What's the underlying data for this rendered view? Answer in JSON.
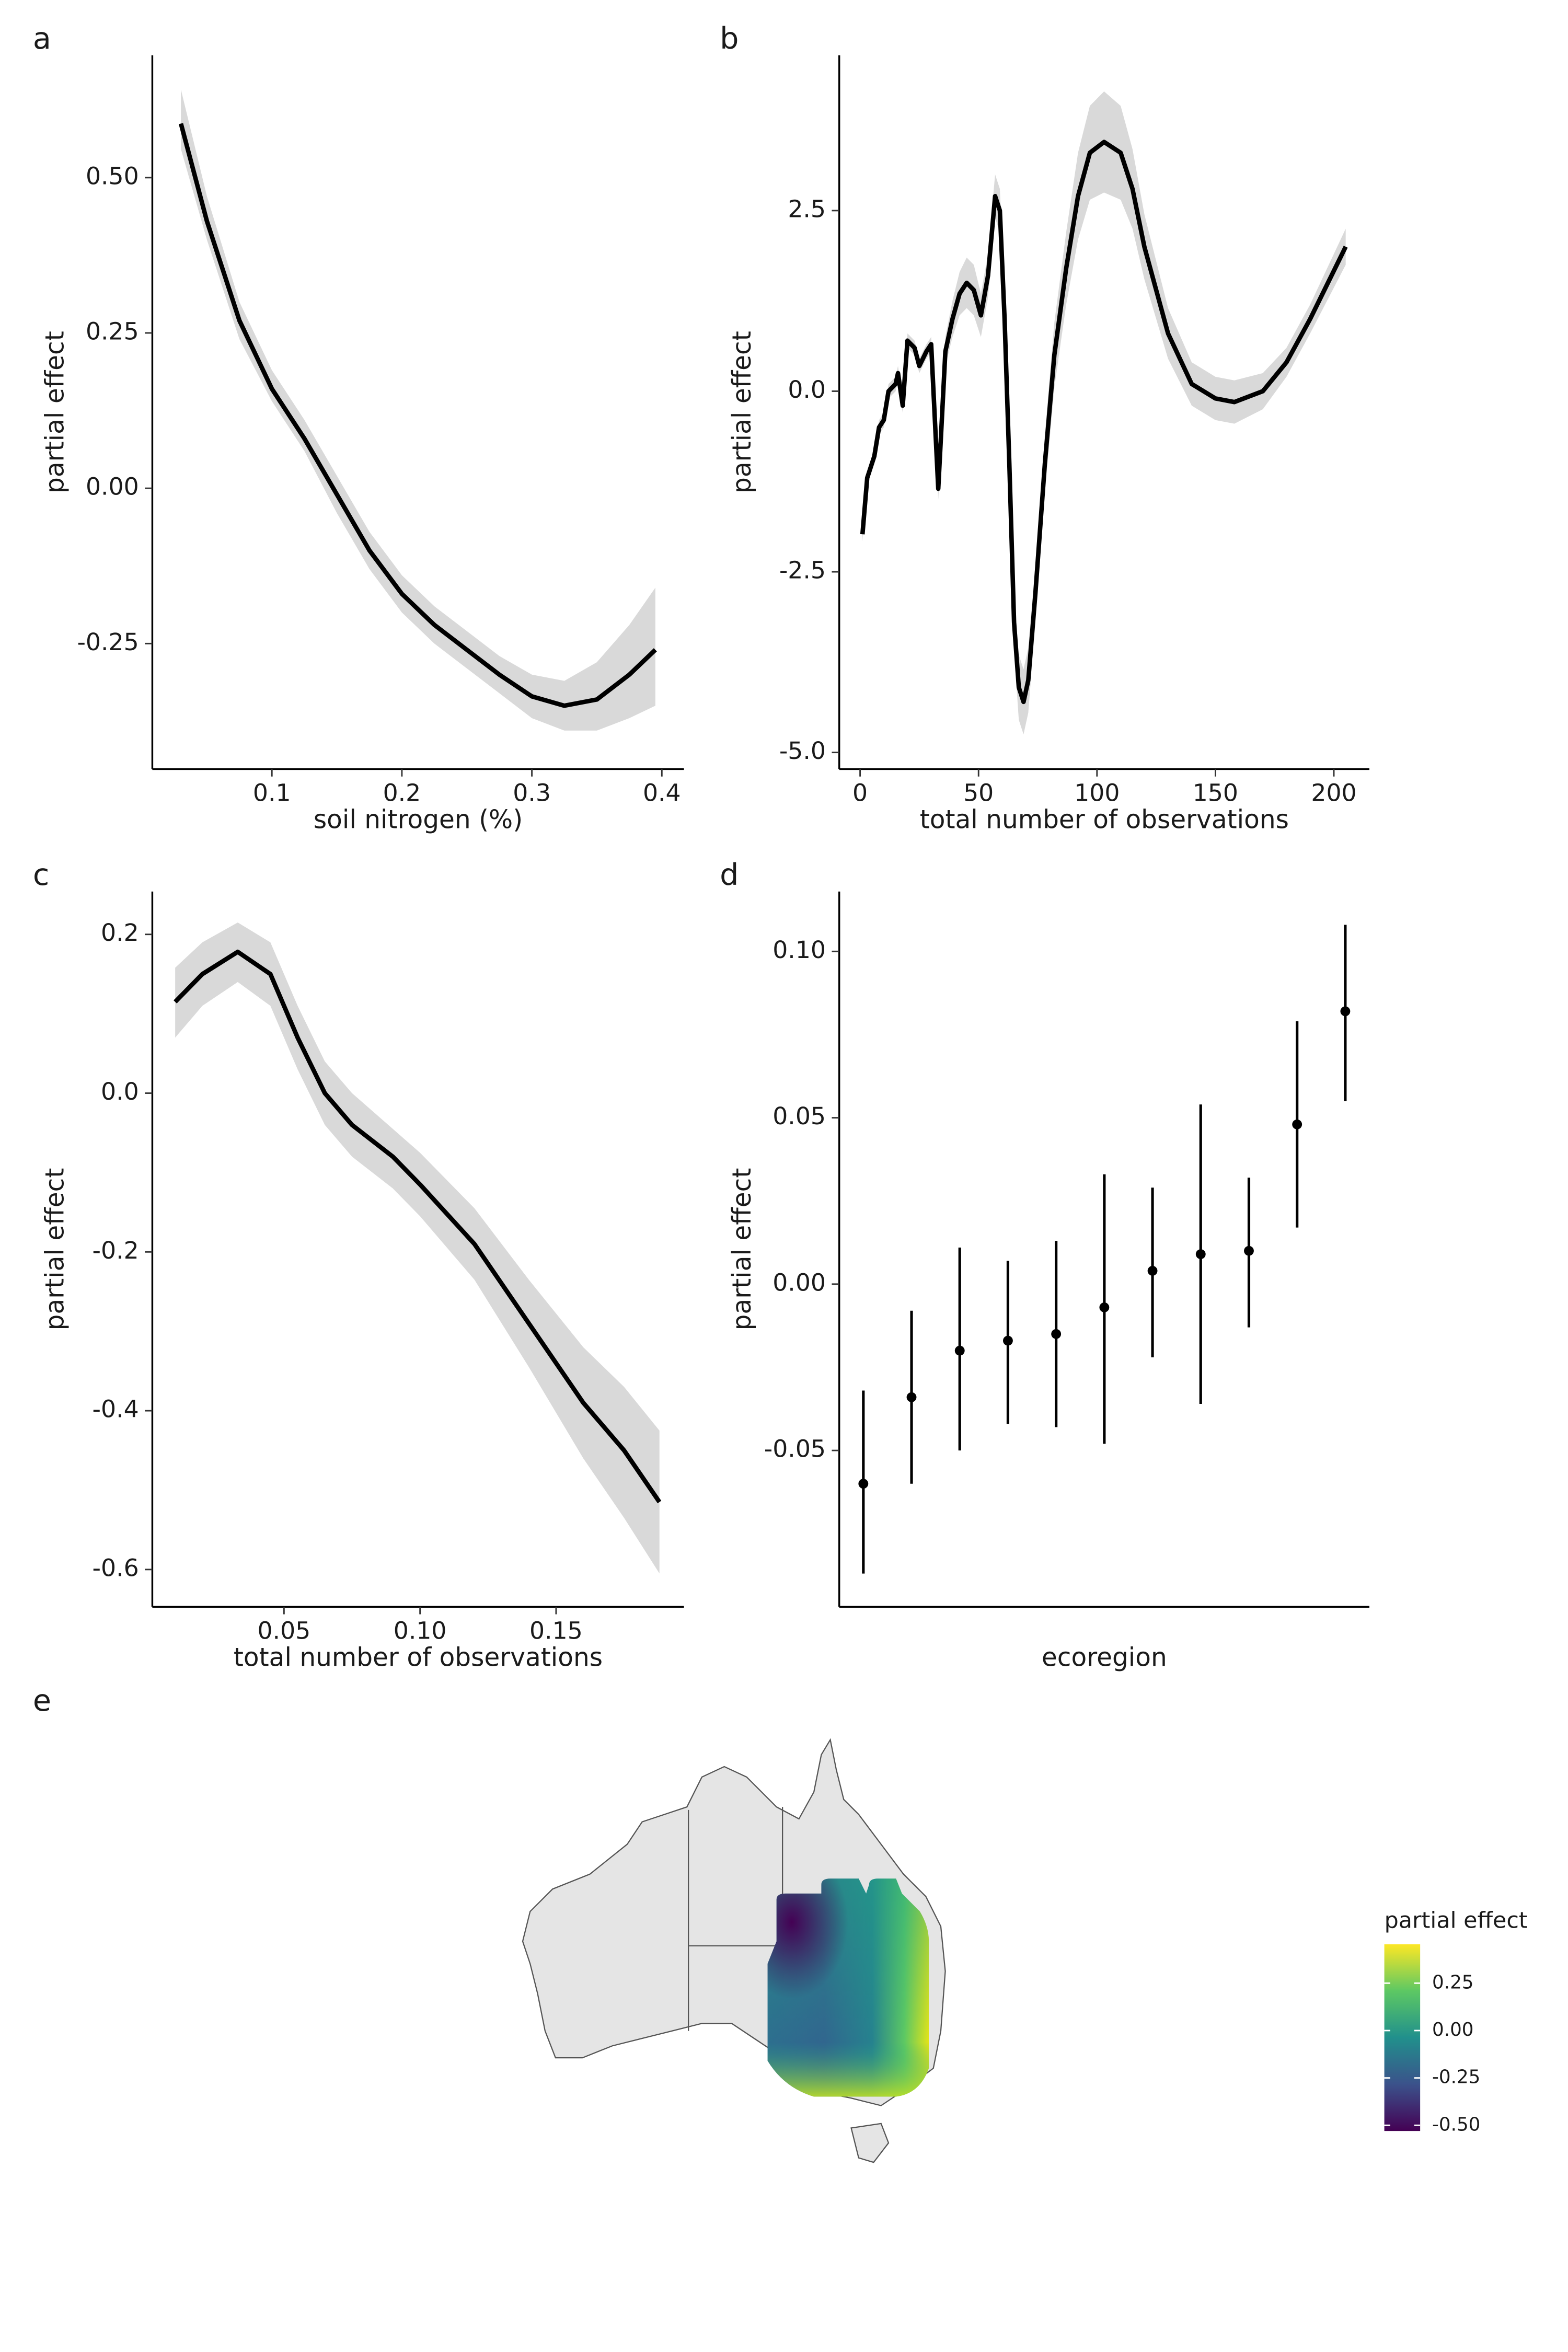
{
  "chart_data": [
    {
      "type": "line",
      "panel": "a",
      "x_label": "soil nitrogen (%)",
      "y_label": "partial effect",
      "color": "#000000",
      "band_color": "#d9d9d9",
      "x": [
        0.03,
        0.05,
        0.075,
        0.1,
        0.125,
        0.15,
        0.175,
        0.2,
        0.225,
        0.25,
        0.275,
        0.3,
        0.325,
        0.35,
        0.375,
        0.395
      ],
      "values": [
        0.587,
        0.43,
        0.27,
        0.16,
        0.08,
        -0.01,
        -0.1,
        -0.17,
        -0.22,
        -0.26,
        -0.3,
        -0.335,
        -0.35,
        -0.34,
        -0.3,
        -0.26
      ],
      "lower": [
        0.546,
        0.4,
        0.24,
        0.14,
        0.06,
        -0.04,
        -0.13,
        -0.2,
        -0.25,
        -0.29,
        -0.33,
        -0.37,
        -0.39,
        -0.39,
        -0.37,
        -0.35
      ],
      "upper": [
        0.642,
        0.47,
        0.3,
        0.19,
        0.11,
        0.02,
        -0.07,
        -0.14,
        -0.19,
        -0.23,
        -0.27,
        -0.3,
        -0.31,
        -0.28,
        -0.22,
        -0.16
      ],
      "xlim": [
        0.008,
        0.417
      ],
      "ylim": [
        -0.452,
        0.697
      ],
      "xticks": [
        0.1,
        0.2,
        0.3,
        0.4
      ],
      "yticks": [
        {
          "value": 0.5,
          "label": "0.50"
        },
        0.25,
        {
          "value": 0,
          "label": "0.00"
        },
        -0.25
      ]
    },
    {
      "type": "line",
      "panel": "b",
      "x_label": "total number of observations",
      "y_label": "partial effect",
      "color": "#000000",
      "band_color": "#d9d9d9",
      "x": [
        1,
        3,
        6,
        8,
        10,
        12,
        15,
        16,
        18,
        20,
        23,
        25,
        28,
        30,
        33,
        36,
        39,
        42,
        45,
        48,
        51,
        54,
        57,
        59,
        61,
        63,
        65,
        67,
        69,
        71,
        74,
        78,
        82,
        87,
        92,
        97,
        103,
        110,
        115,
        120,
        130,
        140,
        150,
        158,
        170,
        180,
        190,
        205
      ],
      "values": [
        -1.98,
        -1.2,
        -0.9,
        -0.5,
        -0.4,
        0.0,
        0.1,
        0.25,
        -0.2,
        0.7,
        0.6,
        0.35,
        0.55,
        0.65,
        -1.35,
        0.55,
        1.0,
        1.35,
        1.5,
        1.4,
        1.05,
        1.6,
        2.7,
        2.5,
        1.0,
        -1.0,
        -3.2,
        -4.1,
        -4.3,
        -4.0,
        -2.8,
        -1.0,
        0.5,
        1.7,
        2.7,
        3.3,
        3.45,
        3.3,
        2.8,
        2.0,
        0.8,
        0.1,
        -0.1,
        -0.15,
        0.0,
        0.4,
        1.0,
        2.0
      ],
      "lower": [
        -2.08,
        -1.3,
        -1.0,
        -0.6,
        -0.5,
        -0.1,
        0.0,
        0.15,
        -0.3,
        0.6,
        0.5,
        0.25,
        0.45,
        0.55,
        -1.5,
        0.35,
        0.75,
        1.05,
        1.15,
        1.05,
        0.75,
        1.3,
        2.4,
        2.2,
        0.7,
        -1.35,
        -3.6,
        -4.55,
        -4.75,
        -4.45,
        -3.2,
        -1.4,
        0.05,
        1.2,
        2.1,
        2.65,
        2.75,
        2.65,
        2.25,
        1.55,
        0.45,
        -0.2,
        -0.4,
        -0.45,
        -0.25,
        0.2,
        0.8,
        1.75
      ],
      "upper": [
        -1.88,
        -1.1,
        -0.8,
        -0.4,
        -0.3,
        0.1,
        0.2,
        0.35,
        -0.1,
        0.8,
        0.7,
        0.45,
        0.65,
        0.75,
        -1.2,
        0.75,
        1.25,
        1.65,
        1.85,
        1.75,
        1.35,
        1.9,
        3.0,
        2.8,
        1.3,
        -0.65,
        -2.8,
        -3.65,
        -3.85,
        -3.55,
        -2.4,
        -0.6,
        0.95,
        2.2,
        3.3,
        3.95,
        4.15,
        3.95,
        3.35,
        2.45,
        1.15,
        0.4,
        0.2,
        0.15,
        0.25,
        0.6,
        1.2,
        2.25
      ],
      "xlim": [
        -8.8,
        215
      ],
      "ylim": [
        -5.23,
        4.65
      ],
      "xticks": [
        0,
        50,
        100,
        150,
        200
      ],
      "yticks": [
        2.5,
        {
          "value": 0,
          "label": "0.0"
        },
        -2.5,
        {
          "value": -5,
          "label": "-5.0"
        }
      ]
    },
    {
      "type": "line",
      "panel": "c",
      "x_label": "total number of observations",
      "y_label": "partial effect",
      "color": "#000000",
      "band_color": "#d9d9d9",
      "x": [
        0.01,
        0.02,
        0.033,
        0.045,
        0.055,
        0.065,
        0.075,
        0.09,
        0.1,
        0.12,
        0.14,
        0.16,
        0.175,
        0.188
      ],
      "values": [
        0.115,
        0.15,
        0.178,
        0.15,
        0.07,
        0.0,
        -0.04,
        -0.08,
        -0.115,
        -0.19,
        -0.29,
        -0.39,
        -0.45,
        -0.515
      ],
      "lower": [
        0.07,
        0.11,
        0.14,
        0.11,
        0.03,
        -0.04,
        -0.08,
        -0.12,
        -0.155,
        -0.235,
        -0.345,
        -0.46,
        -0.535,
        -0.605
      ],
      "upper": [
        0.158,
        0.19,
        0.215,
        0.19,
        0.11,
        0.04,
        0.0,
        -0.045,
        -0.075,
        -0.145,
        -0.235,
        -0.32,
        -0.37,
        -0.425
      ],
      "xlim": [
        0.0016,
        0.197
      ],
      "ylim": [
        -0.647,
        0.254
      ],
      "xticks": [
        0.05,
        {
          "value": 0.1,
          "label": "0.10"
        },
        0.15
      ],
      "yticks": [
        0.2,
        {
          "value": 0,
          "label": "0.0"
        },
        -0.2,
        -0.4,
        -0.6
      ]
    },
    {
      "type": "errorbar",
      "panel": "d",
      "x_label": "ecoregion",
      "y_label": "partial effect",
      "color": "#000000",
      "categories": [
        null,
        null,
        null,
        null,
        null,
        null,
        null,
        null,
        null,
        null,
        null
      ],
      "values": [
        -0.06,
        -0.034,
        -0.02,
        -0.017,
        -0.015,
        -0.007,
        0.004,
        0.009,
        0.01,
        0.048,
        0.082
      ],
      "lower": [
        -0.087,
        -0.06,
        -0.05,
        -0.042,
        -0.043,
        -0.048,
        -0.022,
        -0.036,
        -0.013,
        0.017,
        0.055
      ],
      "upper": [
        -0.032,
        -0.008,
        0.011,
        0.007,
        0.013,
        0.033,
        0.029,
        0.054,
        0.032,
        0.079,
        0.108
      ],
      "ylim": [
        -0.097,
        0.118
      ],
      "yticks": [
        {
          "value": 0.1,
          "label": "0.10"
        },
        0.05,
        {
          "value": 0,
          "label": "0.00"
        },
        -0.05
      ]
    },
    {
      "type": "map",
      "panel": "e",
      "legend_title": "partial effect",
      "colors": [
        "#440154",
        "#3b528b",
        "#21908c",
        "#5dc863",
        "#fde725"
      ],
      "clim": [
        -0.53,
        0.455
      ],
      "cticks": [
        0.25,
        {
          "value": 0,
          "label": "0.00"
        },
        -0.25,
        {
          "value": -0.5,
          "label": "-0.50"
        }
      ]
    }
  ]
}
